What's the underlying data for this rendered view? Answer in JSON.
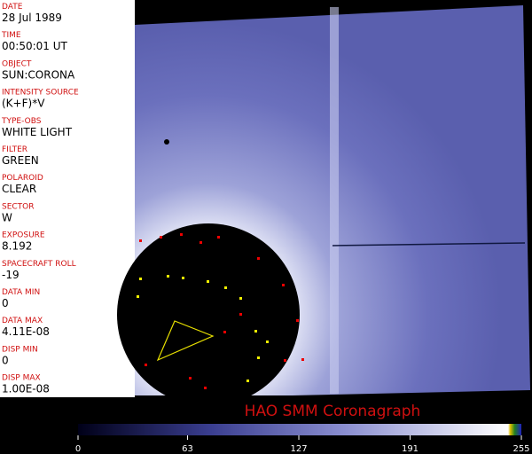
{
  "fields": [
    {
      "label": "DATE",
      "value": "28 Jul 1989"
    },
    {
      "label": "TIME",
      "value": "00:50:01 UT"
    },
    {
      "label": "OBJECT",
      "value": "SUN:CORONA"
    },
    {
      "label": "INTENSITY SOURCE",
      "value": "(K+F)*V"
    },
    {
      "label": "TYPE-OBS",
      "value": "WHITE LIGHT"
    },
    {
      "label": "FILTER",
      "value": "GREEN"
    },
    {
      "label": "POLAROID",
      "value": "CLEAR"
    },
    {
      "label": "SECTOR",
      "value": "W"
    },
    {
      "label": "EXPOSURE",
      "value": "8.192"
    },
    {
      "label": "SPACECRAFT ROLL",
      "value": "-19"
    },
    {
      "label": "DATA MIN",
      "value": "0"
    },
    {
      "label": "DATA MAX",
      "value": "4.11E-08"
    },
    {
      "label": "DISP MIN",
      "value": "0"
    },
    {
      "label": "DISP MAX",
      "value": "1.00E-08"
    }
  ],
  "title": "HAO  SMM Coronagraph",
  "colorbar": {
    "range": [
      0,
      255
    ],
    "ticks": [
      0,
      63,
      127,
      191,
      255
    ]
  }
}
